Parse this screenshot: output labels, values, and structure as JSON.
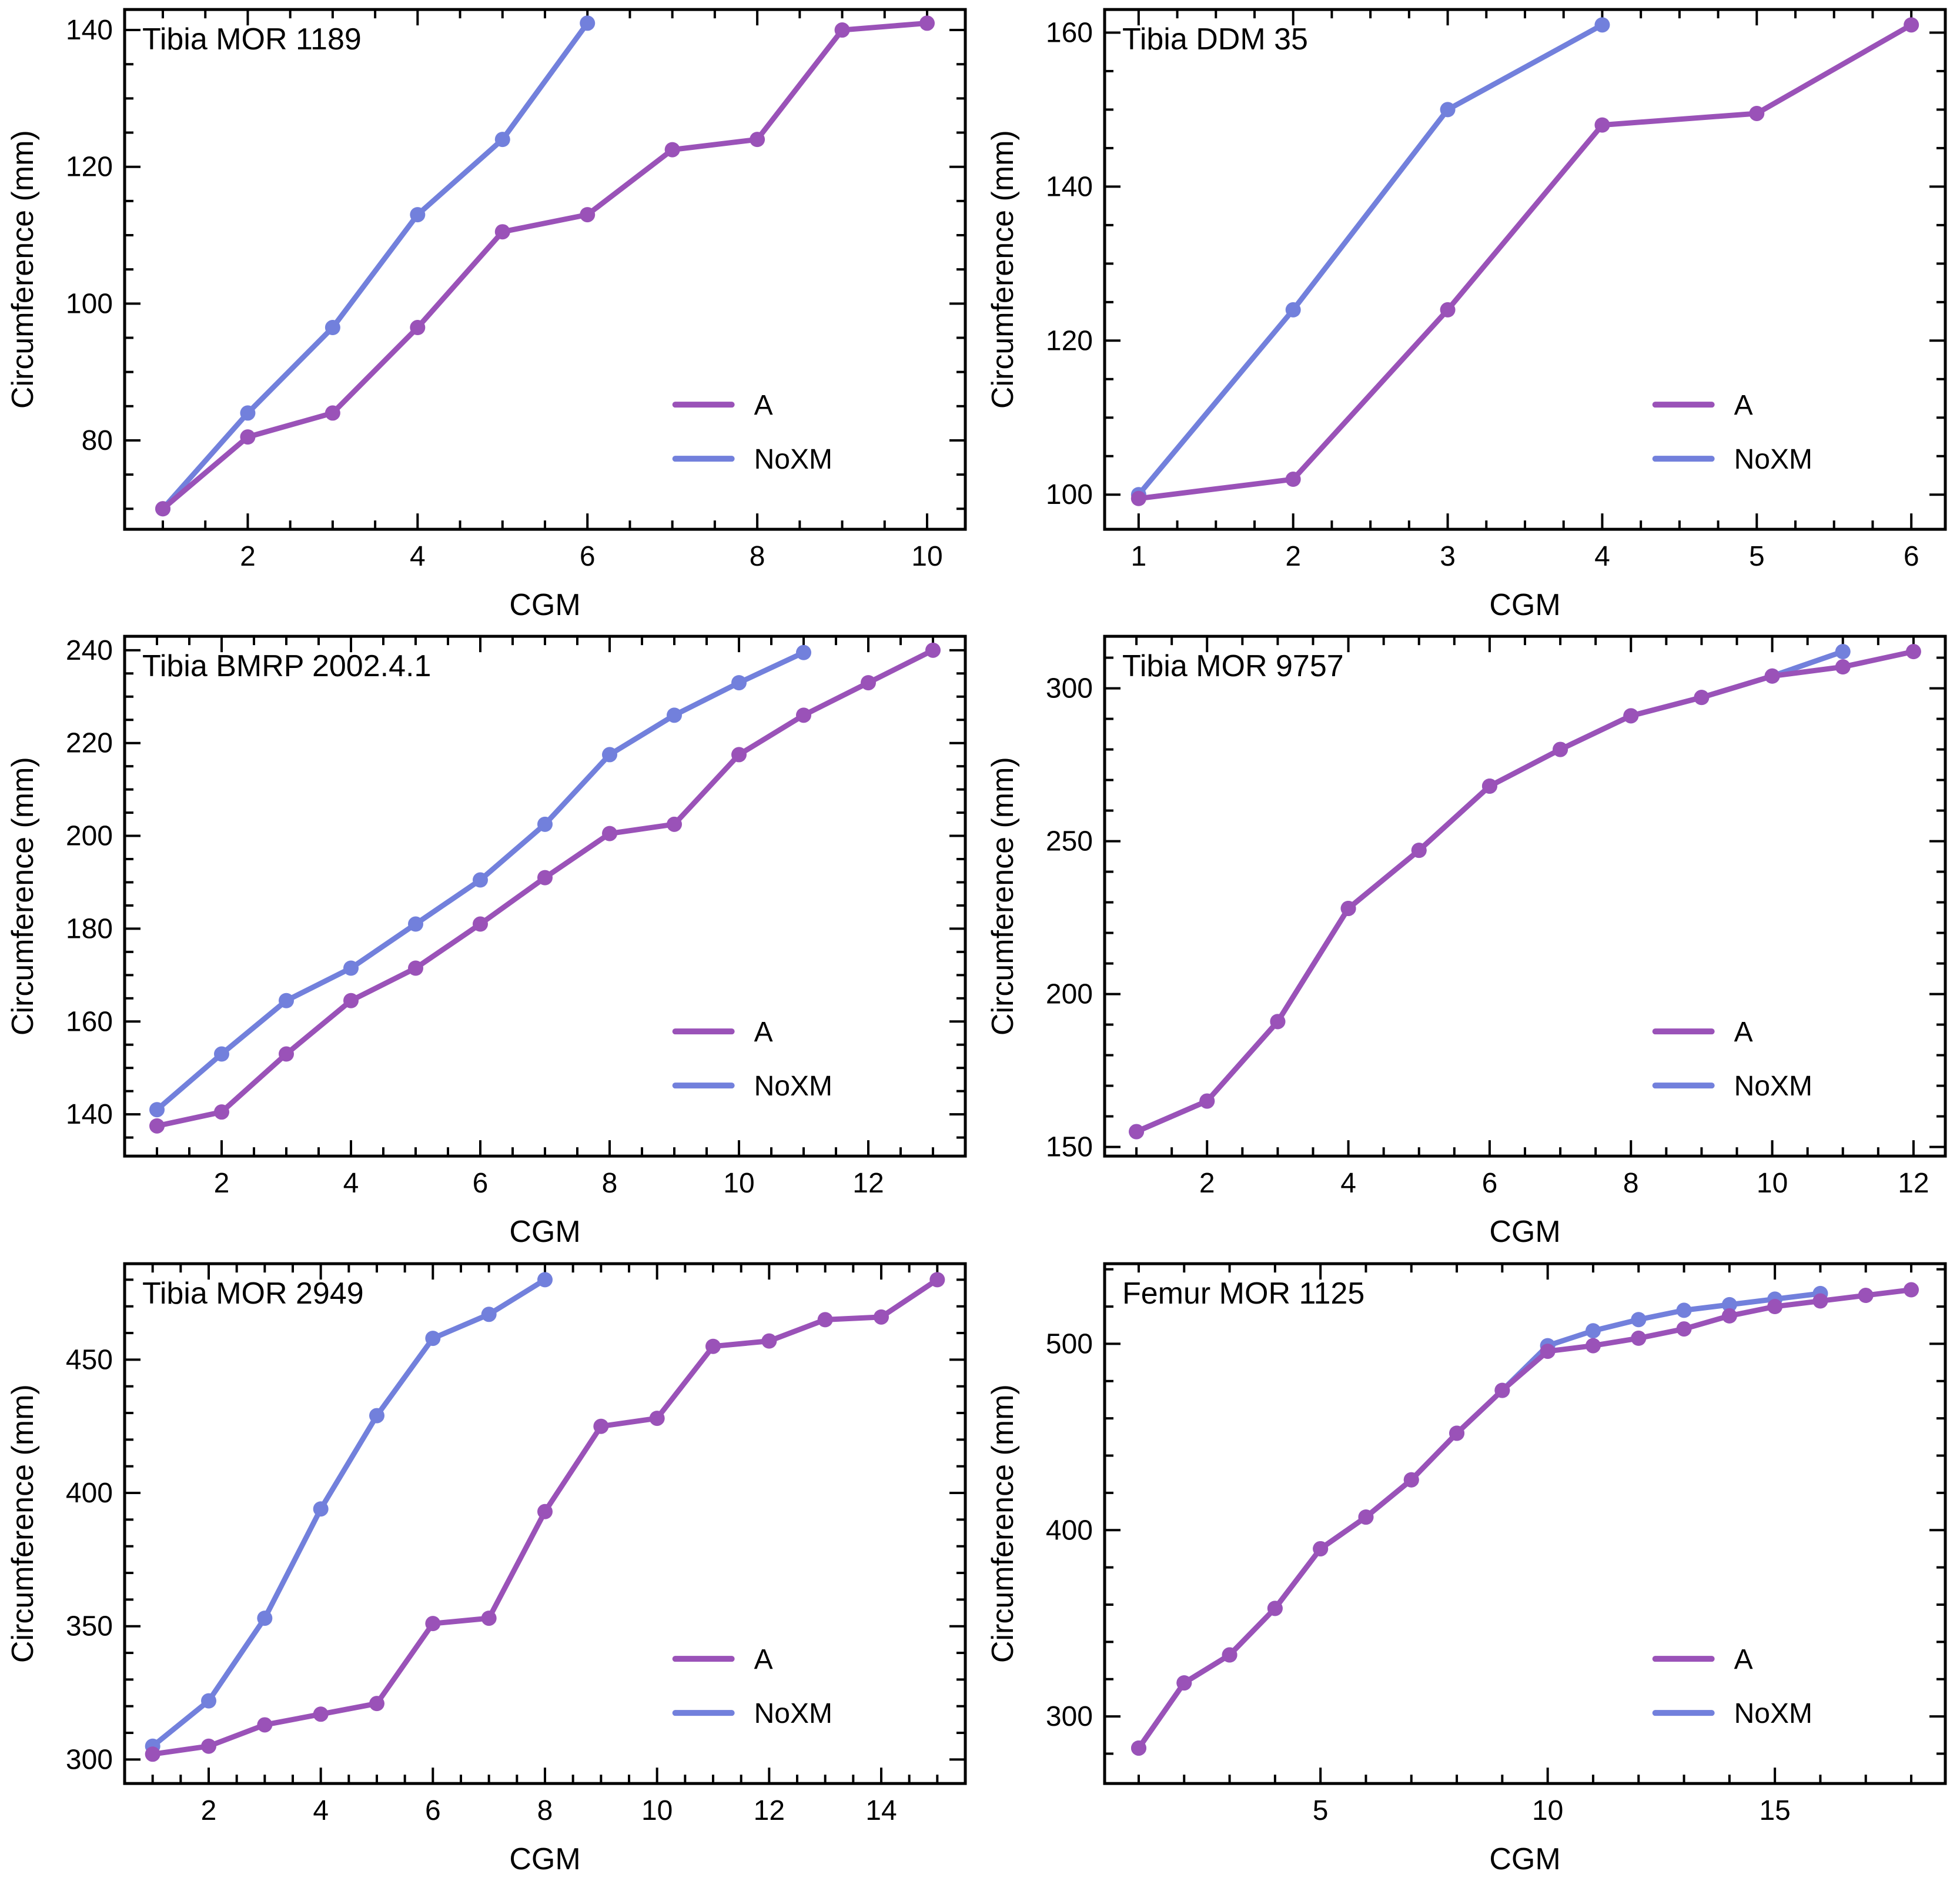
{
  "figure": {
    "ylabel": "Circumference (mm)",
    "xlabel": "CGM",
    "colors": {
      "a": "#9A52B8",
      "noxm": "#7280DC"
    },
    "axis_color": "#000000",
    "text_color": "#000000",
    "background": "#FFFFFF"
  },
  "chart_data": [
    {
      "type": "line",
      "title": "Tibia MOR 1189",
      "xlabel": "CGM",
      "ylabel": "Circumference (mm)",
      "xlim": [
        0.55,
        10.45
      ],
      "ylim": [
        67,
        143
      ],
      "xticks": [
        2,
        4,
        6,
        8,
        10
      ],
      "xtick_minor_step": 0.5,
      "yticks": [
        80,
        100,
        120,
        140
      ],
      "ytick_minor_step": 5,
      "legend_position": "bottom-right",
      "series": [
        {
          "name": "A",
          "color_key": "a",
          "x": [
            1,
            2,
            3,
            4,
            5,
            6,
            7,
            8,
            9,
            10
          ],
          "y": [
            70,
            80.5,
            84,
            96.5,
            110.5,
            113,
            122.5,
            124,
            140,
            141
          ]
        },
        {
          "name": "NoXM",
          "color_key": "noxm",
          "x": [
            1,
            2,
            3,
            4,
            5,
            6
          ],
          "y": [
            70,
            84,
            96.5,
            113,
            124,
            141
          ]
        }
      ]
    },
    {
      "type": "line",
      "title": "Tibia DDM 35",
      "xlabel": "CGM",
      "ylabel": "Circumference (mm)",
      "xlim": [
        0.78,
        6.22
      ],
      "ylim": [
        95.5,
        163
      ],
      "xticks": [
        1,
        2,
        3,
        4,
        5,
        6
      ],
      "xtick_minor_step": 0.25,
      "yticks": [
        100,
        120,
        140,
        160
      ],
      "ytick_minor_step": 5,
      "legend_position": "bottom-right",
      "series": [
        {
          "name": "A",
          "color_key": "a",
          "x": [
            1,
            2,
            3,
            4,
            5,
            6
          ],
          "y": [
            99.5,
            102,
            124,
            148,
            149.5,
            161
          ]
        },
        {
          "name": "NoXM",
          "color_key": "noxm",
          "x": [
            1,
            2,
            3,
            4
          ],
          "y": [
            100,
            124,
            150,
            161
          ]
        }
      ]
    },
    {
      "type": "line",
      "title": "Tibia BMRP 2002.4.1",
      "xlabel": "CGM",
      "ylabel": "Circumference (mm)",
      "xlim": [
        0.5,
        13.5
      ],
      "ylim": [
        131,
        243
      ],
      "xticks": [
        2,
        4,
        6,
        8,
        10,
        12
      ],
      "xtick_minor_step": 0.5,
      "yticks": [
        140,
        160,
        180,
        200,
        220,
        240
      ],
      "ytick_minor_step": 5,
      "legend_position": "bottom-right",
      "series": [
        {
          "name": "A",
          "color_key": "a",
          "x": [
            1,
            2,
            3,
            4,
            5,
            6,
            7,
            8,
            9,
            10,
            11,
            12,
            13
          ],
          "y": [
            137.5,
            140.5,
            153,
            164.5,
            171.5,
            181,
            191,
            200.5,
            202.5,
            217.5,
            226,
            233,
            240
          ]
        },
        {
          "name": "NoXM",
          "color_key": "noxm",
          "x": [
            1,
            2,
            3,
            4,
            5,
            6,
            7,
            8,
            9,
            10,
            11
          ],
          "y": [
            141,
            153,
            164.5,
            171.5,
            181,
            190.5,
            202.5,
            217.5,
            226,
            233,
            239.5
          ]
        }
      ]
    },
    {
      "type": "line",
      "title": "Tibia MOR 9757",
      "xlabel": "CGM",
      "ylabel": "Circumference (mm)",
      "xlim": [
        0.55,
        12.45
      ],
      "ylim": [
        147,
        317
      ],
      "xticks": [
        2,
        4,
        6,
        8,
        10,
        12
      ],
      "xtick_minor_step": 0.5,
      "yticks": [
        150,
        200,
        250,
        300
      ],
      "ytick_minor_step": 10,
      "legend_position": "bottom-right",
      "series": [
        {
          "name": "A",
          "color_key": "a",
          "x": [
            1,
            2,
            3,
            4,
            5,
            6,
            7,
            8,
            9,
            10,
            11,
            12
          ],
          "y": [
            155,
            165,
            191,
            228,
            247,
            268,
            280,
            291,
            297,
            304,
            307,
            312
          ]
        },
        {
          "name": "NoXM",
          "color_key": "noxm",
          "x": [
            1,
            2,
            3,
            4,
            5,
            6,
            7,
            8,
            9,
            10,
            11
          ],
          "y": [
            155,
            165,
            191,
            228,
            247,
            268,
            280,
            291,
            297,
            304,
            312
          ]
        }
      ]
    },
    {
      "type": "line",
      "title": "Tibia MOR 2949",
      "xlabel": "CGM",
      "ylabel": "Circumference (mm)",
      "xlim": [
        0.5,
        15.5
      ],
      "ylim": [
        291,
        486
      ],
      "xticks": [
        2,
        4,
        6,
        8,
        10,
        12,
        14
      ],
      "xtick_minor_step": 0.5,
      "yticks": [
        300,
        350,
        400,
        450
      ],
      "ytick_minor_step": 10,
      "legend_position": "bottom-right",
      "series": [
        {
          "name": "A",
          "color_key": "a",
          "x": [
            1,
            2,
            3,
            4,
            5,
            6,
            7,
            8,
            9,
            10,
            11,
            12,
            13,
            14,
            15
          ],
          "y": [
            302,
            305,
            313,
            317,
            321,
            351,
            353,
            393,
            425,
            428,
            455,
            457,
            465,
            466,
            480
          ]
        },
        {
          "name": "NoXM",
          "color_key": "noxm",
          "x": [
            1,
            2,
            3,
            4,
            5,
            6,
            7,
            8
          ],
          "y": [
            305,
            322,
            353,
            394,
            429,
            458,
            467,
            480
          ]
        }
      ]
    },
    {
      "type": "line",
      "title": "Femur MOR 1125",
      "xlabel": "CGM",
      "ylabel": "Circumference (mm)",
      "xlim": [
        0.25,
        18.75
      ],
      "ylim": [
        264,
        543
      ],
      "xticks": [
        5,
        10,
        15
      ],
      "xtick_minor_step": 1,
      "yticks": [
        300,
        400,
        500
      ],
      "ytick_minor_step": 20,
      "legend_position": "bottom-right",
      "series": [
        {
          "name": "A",
          "color_key": "a",
          "x": [
            1,
            2,
            3,
            4,
            5,
            6,
            7,
            8,
            9,
            10,
            11,
            12,
            13,
            14,
            15,
            16,
            17,
            18
          ],
          "y": [
            283,
            318,
            333,
            358,
            390,
            407,
            427,
            452,
            475,
            496,
            499,
            503,
            508,
            515,
            520,
            523,
            526,
            529
          ]
        },
        {
          "name": "NoXM",
          "color_key": "noxm",
          "x": [
            1,
            2,
            3,
            4,
            5,
            6,
            7,
            8,
            9,
            10,
            11,
            12,
            13,
            14,
            15,
            16
          ],
          "y": [
            283,
            318,
            333,
            358,
            390,
            407,
            427,
            452,
            475,
            499,
            507,
            513,
            518,
            521,
            524,
            527
          ]
        }
      ]
    }
  ]
}
